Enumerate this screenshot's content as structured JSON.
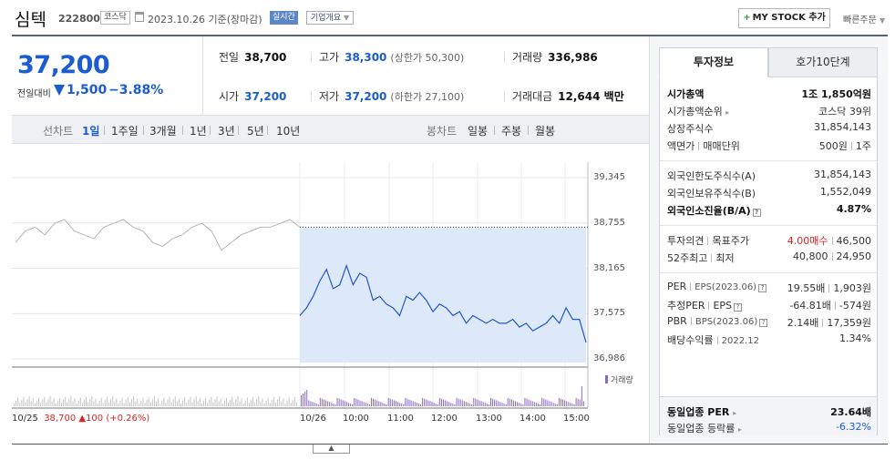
{
  "header": {
    "name": "심텍",
    "code": "222800",
    "market": "코스닥",
    "date": "2023.10.26  기준(장마감)",
    "realtime": "실시간",
    "corp_info": "기업개요",
    "add_mystock": "MY STOCK 추가",
    "quick_order": "빠른주문"
  },
  "price": {
    "current": "37,200",
    "compare_label": "전일대비",
    "change": "1,500",
    "rate": "−3.88%",
    "color": "#1b5cd1"
  },
  "stats": {
    "prev_label": "전일",
    "prev": "38,700",
    "high_label": "고가",
    "high": "38,300",
    "upper_limit": "(상한가 50,300)",
    "volume_label": "거래량",
    "volume": "336,986",
    "open_label": "시가",
    "open": "37,200",
    "low_label": "저가",
    "low": "37,200",
    "lower_limit": "(하한가 27,100)",
    "amount_label": "거래대금",
    "amount": "12,644 백만"
  },
  "chart_tabs": {
    "line_label": "선차트",
    "periods": [
      "1일",
      "1주일",
      "3개월",
      "1년",
      "3년",
      "5년",
      "10년"
    ],
    "selected": "1일",
    "candle_label": "봉차트",
    "candles": [
      "일봉",
      "주봉",
      "월봉"
    ]
  },
  "chart_data": {
    "type": "line",
    "y_ticks": [
      "39,345",
      "38,755",
      "38,165",
      "37,575",
      "36,986"
    ],
    "ylim": [
      36986,
      39345
    ],
    "prev_close": 38700,
    "x_labels": [
      "10/25",
      "10/26",
      "10:00",
      "11:00",
      "12:00",
      "13:00",
      "14:00",
      "15:00"
    ],
    "volume_label": "거래량",
    "prev_day_summary": {
      "date": "10/25",
      "close": "38,700",
      "change": "▲100",
      "rate": "(+0.26%)"
    },
    "prev_day_series": [
      38500,
      38650,
      38700,
      38600,
      38750,
      38800,
      38650,
      38600,
      38550,
      38700,
      38750,
      38800,
      38700,
      38650,
      38500,
      38450,
      38550,
      38600,
      38700,
      38750,
      38650,
      38400,
      38500,
      38600,
      38650,
      38700,
      38700,
      38750,
      38800,
      38700
    ],
    "today_series": [
      37550,
      37650,
      37800,
      38000,
      38150,
      37900,
      37950,
      38200,
      37950,
      38100,
      38050,
      37750,
      37800,
      37700,
      37650,
      37550,
      37800,
      37750,
      37850,
      37750,
      37600,
      37700,
      37650,
      37550,
      37600,
      37450,
      37550,
      37500,
      37450,
      37500,
      37450,
      37450,
      37500,
      37400,
      37450,
      37350,
      37400,
      37450,
      37550,
      37450,
      37650,
      37500,
      37500,
      37200
    ]
  },
  "panel": {
    "tab_info": "투자정보",
    "tab_orderbook": "호가10단계",
    "rows": {
      "mcap_label": "시가총액",
      "mcap": "1조 1,850억원",
      "mcap_rank_label": "시가총액순위",
      "mcap_rank": "코스닥 39위",
      "shares_label": "상장주식수",
      "shares": "31,854,143",
      "par_label": "액면가",
      "unit_label": "매매단위",
      "par": "500원",
      "unit": "1주",
      "foreign_limit_label": "외국인한도주식수(A)",
      "foreign_limit": "31,854,143",
      "foreign_hold_label": "외국인보유주식수(B)",
      "foreign_hold": "1,552,049",
      "foreign_rate_label": "외국인소진율(B/A)",
      "foreign_rate": "4.87%",
      "opinion_label": "투자의견",
      "target_label": "목표주가",
      "opinion": "4.00매수",
      "target": "46,500",
      "w52_label": "52주최고",
      "w52_low_label": "최저",
      "w52_high": "40,800",
      "w52_low": "24,950",
      "per_label": "PER",
      "eps_label": "EPS(2023.06)",
      "per": "19.55배",
      "eps": "1,903원",
      "est_per_label": "추정PER",
      "est_eps_label": "EPS",
      "est_per": "-64.81배",
      "est_eps": "-574원",
      "pbr_label": "PBR",
      "bps_label": "BPS(2023.06)",
      "pbr": "2.14배",
      "bps": "17,359원",
      "div_label": "배당수익률",
      "div_date": "2022.12",
      "div": "1.34%",
      "ind_per_label": "동일업종 PER",
      "ind_per": "23.64배",
      "ind_rate_label": "동일업종 등락률",
      "ind_rate": "-6.32%"
    }
  }
}
